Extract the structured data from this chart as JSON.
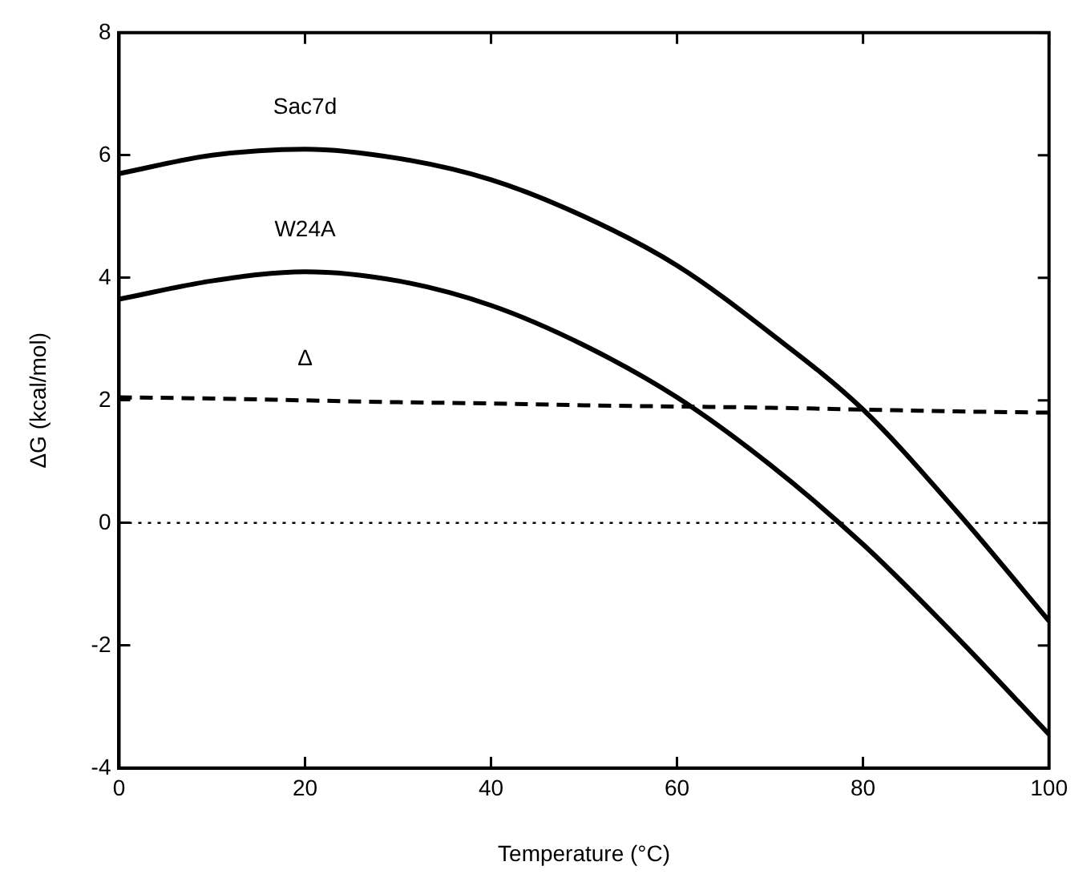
{
  "chart_data": {
    "type": "line",
    "xlabel": "Temperature (°C)",
    "ylabel": "ΔG (kcal/mol)",
    "x": [
      0,
      10,
      20,
      30,
      40,
      50,
      60,
      70,
      80,
      90,
      100
    ],
    "series": [
      {
        "name": "Sac7d",
        "color": "#000000",
        "line_style": "solid",
        "values": [
          5.7,
          6.0,
          6.1,
          5.95,
          5.6,
          5.0,
          4.2,
          3.1,
          1.85,
          0.2,
          -1.6
        ]
      },
      {
        "name": "W24A",
        "color": "#000000",
        "line_style": "solid",
        "values": [
          3.65,
          3.95,
          4.1,
          3.95,
          3.55,
          2.9,
          2.05,
          0.95,
          -0.35,
          -1.85,
          -3.45
        ]
      },
      {
        "name": "Δ",
        "color": "#000000",
        "line_style": "dashed",
        "values": [
          2.05,
          2.03,
          2.0,
          1.97,
          1.95,
          1.92,
          1.9,
          1.88,
          1.85,
          1.82,
          1.8
        ]
      }
    ],
    "xlim": [
      0,
      100
    ],
    "xticks": [
      0,
      20,
      40,
      60,
      80,
      100
    ],
    "ylim": [
      -4,
      8
    ],
    "yticks": [
      -4,
      -2,
      0,
      2,
      4,
      6,
      8
    ],
    "ref_lines": [
      {
        "axis": "y",
        "value": 0,
        "line_style": "dotted",
        "color": "#000000"
      }
    ],
    "grid": false,
    "legend": false,
    "marker": "none"
  }
}
